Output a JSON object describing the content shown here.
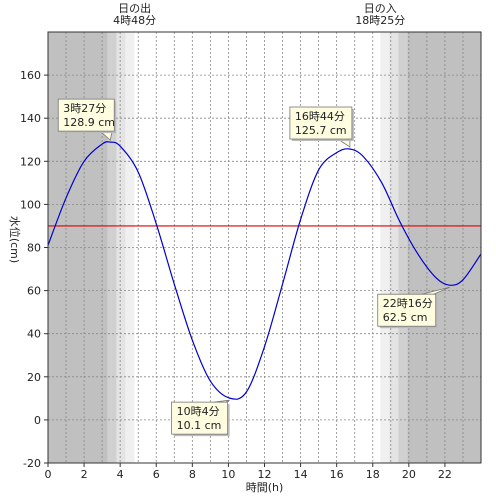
{
  "chart_data": {
    "type": "line",
    "xlabel": "時間(h)",
    "ylabel": "水位(cm)",
    "xlim": [
      0,
      24
    ],
    "ylim": [
      -20,
      180
    ],
    "x_ticks": [
      "0",
      "2",
      "4",
      "6",
      "8",
      "10",
      "12",
      "14",
      "16",
      "18",
      "20",
      "22"
    ],
    "y_ticks": [
      "-20",
      "0",
      "20",
      "40",
      "60",
      "80",
      "100",
      "120",
      "140",
      "160"
    ],
    "grid": true,
    "reference_line": {
      "y": 90,
      "color": "#e00000"
    },
    "series": [
      {
        "color": "#0000cc",
        "x": [
          0,
          1,
          2,
          3,
          3.45,
          4,
          5,
          6,
          7,
          8,
          9,
          10.0667,
          11,
          12,
          13,
          14,
          15,
          16,
          16.7333,
          17.5,
          18.5,
          19.5,
          20.5,
          21.5,
          22.2667,
          23,
          24
        ],
        "y": [
          81,
          103,
          120,
          128,
          128.9,
          127,
          115,
          91,
          63,
          37,
          18,
          10.1,
          13,
          34,
          63,
          93,
          116,
          124,
          125.7,
          122,
          110,
          92,
          77,
          66,
          62.5,
          65,
          77
        ]
      }
    ],
    "annotations": [
      {
        "time": "3時27分",
        "level": "128.9 cm",
        "x": 3.45,
        "y": 128.9
      },
      {
        "time": "10時4分",
        "level": "10.1 cm",
        "x": 10.0667,
        "y": 10.1
      },
      {
        "time": "16時44分",
        "level": "125.7 cm",
        "x": 16.7333,
        "y": 125.7
      },
      {
        "time": "22時16分",
        "level": "62.5 cm",
        "x": 22.2667,
        "y": 62.5
      }
    ],
    "sunrise": {
      "label": "日の出",
      "time": "4時48分",
      "x": 4.8
    },
    "sunset": {
      "label": "日の入",
      "time": "18時25分",
      "x": 18.4167
    },
    "twilight_colors": {
      "night": "#c0c0c0",
      "dawn_dusk_1": "#d0d0d0",
      "dawn_dusk_2": "#e4e4e4",
      "dawn_dusk_3": "#f0f0f0",
      "day": "#ffffff"
    }
  }
}
